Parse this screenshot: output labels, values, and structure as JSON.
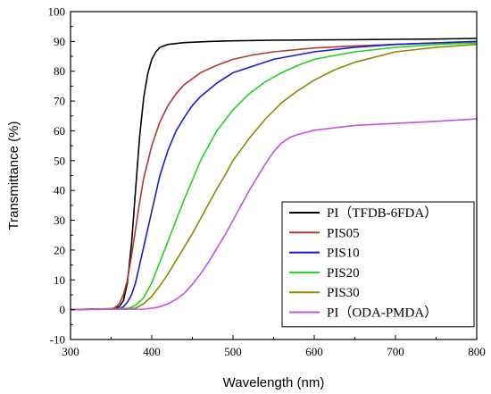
{
  "chart_data": {
    "type": "line",
    "title": "",
    "xlabel": "Wavelength (nm)",
    "ylabel": "Transmittance (%)",
    "xlim": [
      300,
      800
    ],
    "ylim": [
      -10,
      100
    ],
    "xticks": [
      "300",
      "400",
      "500",
      "600",
      "700",
      "800"
    ],
    "yticks": [
      "-10",
      "0",
      "10",
      "20",
      "30",
      "40",
      "50",
      "60",
      "70",
      "80",
      "90",
      "100"
    ],
    "grid": false,
    "legend_position": "bottom-right",
    "series": [
      {
        "name": "PI（TFDB-6FDA）",
        "color": "#000000",
        "x": [
          300,
          350,
          360,
          365,
          370,
          375,
          380,
          385,
          390,
          395,
          400,
          405,
          410,
          420,
          440,
          470,
          500,
          550,
          600,
          650,
          700,
          750,
          800
        ],
        "y": [
          0,
          0.3,
          1,
          3,
          9,
          22,
          40,
          58,
          71,
          79,
          84,
          86.5,
          88,
          89,
          89.6,
          90,
          90.2,
          90.4,
          90.5,
          90.6,
          90.7,
          90.8,
          91
        ]
      },
      {
        "name": "PIS05",
        "color": "#b03a2e",
        "x": [
          300,
          350,
          355,
          360,
          365,
          370,
          375,
          380,
          385,
          390,
          400,
          410,
          420,
          430,
          440,
          450,
          460,
          480,
          500,
          525,
          550,
          600,
          650,
          700,
          750,
          800
        ],
        "y": [
          0,
          0.2,
          0.8,
          2,
          5,
          10,
          18,
          27,
          36,
          44,
          55,
          63,
          68.5,
          72.5,
          75.5,
          77.5,
          79.5,
          82,
          84,
          85.5,
          86.5,
          87.8,
          88.5,
          89,
          89.5,
          90
        ]
      },
      {
        "name": "PIS10",
        "color": "#1a1ad1",
        "x": [
          300,
          360,
          365,
          370,
          375,
          380,
          385,
          390,
          400,
          410,
          420,
          430,
          440,
          450,
          460,
          480,
          500,
          550,
          600,
          650,
          700,
          750,
          800
        ],
        "y": [
          0,
          0.3,
          1,
          2.5,
          5,
          9,
          15,
          21,
          33,
          45,
          53.5,
          60,
          64.5,
          68.5,
          71.5,
          76,
          79.5,
          84,
          86.5,
          88,
          89,
          89.5,
          90
        ]
      },
      {
        "name": "PIS20",
        "color": "#22d122",
        "x": [
          300,
          370,
          380,
          390,
          400,
          410,
          420,
          430,
          440,
          450,
          460,
          470,
          480,
          500,
          520,
          540,
          560,
          580,
          600,
          650,
          700,
          750,
          800
        ],
        "y": [
          0,
          0.3,
          1.5,
          4,
          9,
          16,
          23,
          30,
          37,
          43.5,
          50,
          55,
          60,
          67,
          72.5,
          76.5,
          79.5,
          82,
          84,
          86.5,
          88,
          89,
          89.5
        ]
      },
      {
        "name": "PIS30",
        "color": "#8a8a00",
        "x": [
          300,
          380,
          390,
          400,
          410,
          420,
          430,
          440,
          450,
          460,
          470,
          480,
          490,
          500,
          520,
          540,
          560,
          580,
          600,
          625,
          650,
          700,
          750,
          800
        ],
        "y": [
          0,
          0.5,
          2,
          4.5,
          8,
          12,
          16.5,
          21,
          25.5,
          30.5,
          35.5,
          40.5,
          45,
          50,
          57.5,
          64,
          69.5,
          73.5,
          77,
          80.5,
          83,
          86.5,
          88,
          89
        ]
      },
      {
        "name": "PI（ODA-PMDA）",
        "color": "#c84fe8",
        "x": [
          300,
          390,
          400,
          410,
          420,
          430,
          440,
          450,
          460,
          470,
          480,
          490,
          500,
          510,
          520,
          530,
          540,
          550,
          560,
          570,
          580,
          600,
          650,
          700,
          750,
          800
        ],
        "y": [
          0,
          0.2,
          0.5,
          1,
          2,
          3.5,
          5.5,
          8.5,
          12,
          16,
          20.5,
          25,
          30,
          35,
          40,
          44.5,
          49,
          53,
          56,
          57.8,
          58.8,
          60.2,
          61.8,
          62.5,
          63.2,
          64
        ]
      }
    ]
  }
}
